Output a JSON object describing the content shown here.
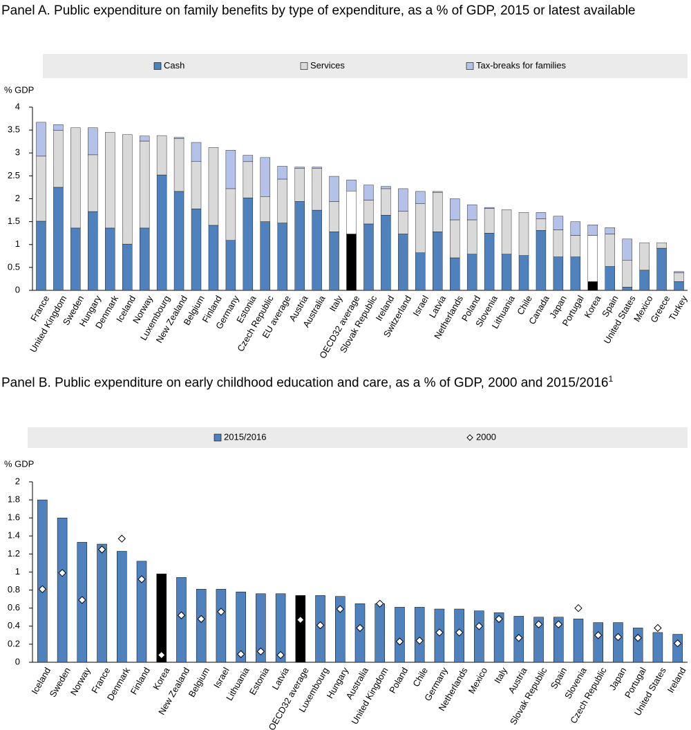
{
  "chart_data": [
    {
      "type": "stacked_bar",
      "title": "Panel A. Public expenditure on family benefits by type of expenditure, as a % of GDP, 2015 or latest available",
      "ylabel": "% GDP",
      "categories": [
        "France",
        "United Kingdom",
        "Sweden",
        "Hungary",
        "Denmark",
        "Iceland",
        "Norway",
        "Luxembourg",
        "New Zealand",
        "Belgium",
        "Finland",
        "Germany",
        "Estonia",
        "Czech Republic",
        "EU average",
        "Austria",
        "Australia",
        "Italy",
        "OECD32 average",
        "Slovak Republic",
        "Ireland",
        "Switzerland",
        "Israel",
        "Latvia",
        "Netherlands",
        "Poland",
        "Slovenia",
        "Lithuania",
        "Chile",
        "Canada",
        "Japan",
        "Portugal",
        "Korea",
        "Spain",
        "United States",
        "Mexico",
        "Greece",
        "Turkey"
      ],
      "series": [
        {
          "name": "Cash",
          "color": "#4f81bd",
          "highlight_color": "#000000",
          "values": [
            1.51,
            2.25,
            1.36,
            1.72,
            1.36,
            1.01,
            1.36,
            2.52,
            2.16,
            1.78,
            1.42,
            1.09,
            2.02,
            1.5,
            1.47,
            1.94,
            1.75,
            1.28,
            1.23,
            1.45,
            1.64,
            1.23,
            0.82,
            1.28,
            0.71,
            0.79,
            1.25,
            0.79,
            0.76,
            1.31,
            0.73,
            0.73,
            0.19,
            0.52,
            0.07,
            0.44,
            0.92,
            0.19
          ]
        },
        {
          "name": "Services",
          "color": "#d9d9d9",
          "highlight_color": "#ffffff",
          "values": [
            1.42,
            1.24,
            2.19,
            1.24,
            2.09,
            2.39,
            1.9,
            0.86,
            1.15,
            1.04,
            1.7,
            1.13,
            0.79,
            0.55,
            0.96,
            0.72,
            0.91,
            0.66,
            0.94,
            0.52,
            0.58,
            0.5,
            1.07,
            0.86,
            0.83,
            0.75,
            0.54,
            0.97,
            0.94,
            0.25,
            0.59,
            0.47,
            1.01,
            0.71,
            0.59,
            0.6,
            0.12,
            0.19
          ]
        },
        {
          "name": "Tax-breaks for families",
          "color": "#b4c2ea",
          "values": [
            0.74,
            0.13,
            0,
            0.59,
            0,
            0,
            0.11,
            0,
            0.03,
            0.41,
            0,
            0.84,
            0.14,
            0.85,
            0.28,
            0.03,
            0.03,
            0.55,
            0.24,
            0.33,
            0.05,
            0.49,
            0.27,
            0.02,
            0.46,
            0.33,
            0.02,
            0,
            0,
            0.14,
            0.3,
            0.3,
            0.23,
            0.14,
            0.46,
            0,
            0,
            0.03
          ]
        }
      ],
      "highlight": [
        18,
        32
      ],
      "ylim": [
        0,
        4
      ],
      "yticks": [
        0,
        0.5,
        1,
        1.5,
        2,
        2.5,
        3,
        3.5,
        4
      ]
    },
    {
      "type": "bar_marker",
      "title": "Panel B. Public expenditure on early childhood education and care, as a % of GDP, 2000 and 2015/2016",
      "title_note": "1",
      "ylabel": "% GDP",
      "categories": [
        "Iceland",
        "Sweden",
        "Norway",
        "France",
        "Denmark",
        "Finland",
        "Korea",
        "New Zealand",
        "Belgium",
        "Israel",
        "Lithuania",
        "Estonia",
        "Latvia",
        "OECD32 average",
        "Luxembourg",
        "Hungary",
        "Australia",
        "United Kingdom",
        "Poland",
        "Chile",
        "Germany",
        "Netherlands",
        "Mexico",
        "Italy",
        "Austria",
        "Slovak Republic",
        "Spain",
        "Slovenia",
        "Czech Republic",
        "Japan",
        "Portugal",
        "United States",
        "Ireland"
      ],
      "series": [
        {
          "name": "2015/2016",
          "style": "bar",
          "color": "#4f81bd",
          "highlight_color": "#000000",
          "values": [
            1.8,
            1.6,
            1.33,
            1.31,
            1.23,
            1.12,
            0.98,
            0.94,
            0.81,
            0.81,
            0.78,
            0.76,
            0.76,
            0.74,
            0.74,
            0.73,
            0.65,
            0.65,
            0.61,
            0.61,
            0.59,
            0.59,
            0.57,
            0.55,
            0.51,
            0.5,
            0.5,
            0.48,
            0.44,
            0.44,
            0.38,
            0.33,
            0.31
          ]
        },
        {
          "name": "2000",
          "style": "diamond",
          "color": "#ffffff",
          "values": [
            0.81,
            0.99,
            0.69,
            1.25,
            1.37,
            0.92,
            0.08,
            0.52,
            0.48,
            0.56,
            0.09,
            0.12,
            0.08,
            0.47,
            0.41,
            0.59,
            0.38,
            0.65,
            0.23,
            0.24,
            0.33,
            0.33,
            0.4,
            0.48,
            0.27,
            0.42,
            0.42,
            0.6,
            0.3,
            0.28,
            0.27,
            0.38,
            0.21
          ]
        }
      ],
      "highlight": [
        6,
        13
      ],
      "ylim": [
        0,
        2
      ],
      "yticks": [
        0,
        0.2,
        0.4,
        0.6,
        0.8,
        1,
        1.2,
        1.4,
        1.6,
        1.8,
        2
      ]
    }
  ]
}
